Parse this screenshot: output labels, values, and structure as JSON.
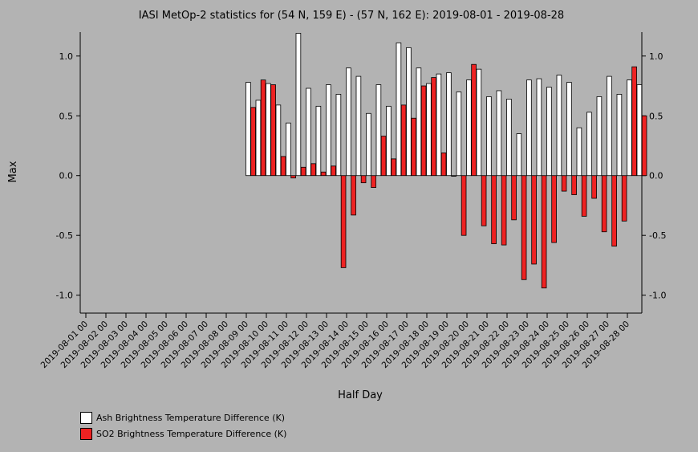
{
  "chart_data": {
    "type": "bar",
    "title": "IASI MetOp-2 statistics for (54 N, 159 E) - (57 N, 162 E): 2019-08-01 - 2019-08-28",
    "xlabel": "Half Day",
    "ylabel": "Max",
    "ylim": [
      -1.15,
      1.2
    ],
    "yticks": [
      1.0,
      0.5,
      0.0,
      -0.5,
      -1.0
    ],
    "ytick_labels": [
      "1.0",
      "0.5",
      "0.0",
      "-0.5",
      "-1.0"
    ],
    "xtick_labels": [
      "2019-08-01 00",
      "2019-08-02 00",
      "2019-08-03 00",
      "2019-08-04 00",
      "2019-08-05 00",
      "2019-08-06 00",
      "2019-08-07 00",
      "2019-08-08 00",
      "2019-08-09 00",
      "2019-08-10 00",
      "2019-08-11 00",
      "2019-08-12 00",
      "2019-08-13 00",
      "2019-08-14 00",
      "2019-08-15 00",
      "2019-08-16 00",
      "2019-08-17 00",
      "2019-08-18 00",
      "2019-08-19 00",
      "2019-08-20 00",
      "2019-08-21 00",
      "2019-08-22 00",
      "2019-08-23 00",
      "2019-08-24 00",
      "2019-08-25 00",
      "2019-08-26 00",
      "2019-08-27 00",
      "2019-08-28 00"
    ],
    "first_data_halfday": 16,
    "series": [
      {
        "name": "Ash Brightness Temperature Difference (K)",
        "color": "#ffffff",
        "values": [
          0.78,
          0.63,
          0.77,
          0.59,
          0.44,
          1.19,
          0.73,
          0.58,
          0.76,
          0.68,
          0.9,
          0.83,
          0.52,
          0.76,
          0.58,
          1.11,
          1.07,
          0.9,
          0.77,
          0.85,
          0.86,
          0.7,
          0.8,
          0.89,
          0.66,
          0.71,
          0.64,
          0.35,
          0.8,
          0.81,
          0.74,
          0.84,
          0.78,
          0.4,
          0.53,
          0.66,
          0.83,
          0.68,
          0.8,
          0.76
        ]
      },
      {
        "name": "SO2 Brightness Temperature Difference (K)",
        "color": "#ee2222",
        "values": [
          0.57,
          0.8,
          0.76,
          0.16,
          -0.02,
          0.07,
          0.1,
          0.03,
          0.08,
          -0.77,
          -0.33,
          -0.06,
          -0.1,
          0.33,
          0.14,
          0.59,
          0.48,
          0.75,
          0.82,
          0.19,
          0.0,
          -0.5,
          0.93,
          -0.42,
          -0.57,
          -0.58,
          -0.37,
          -0.87,
          -0.74,
          -0.94,
          -0.56,
          -0.13,
          -0.16,
          -0.34,
          -0.19,
          -0.47,
          -0.59,
          -0.38,
          0.91,
          0.5
        ]
      }
    ],
    "grid": false,
    "legend_position": "bottom-left"
  }
}
